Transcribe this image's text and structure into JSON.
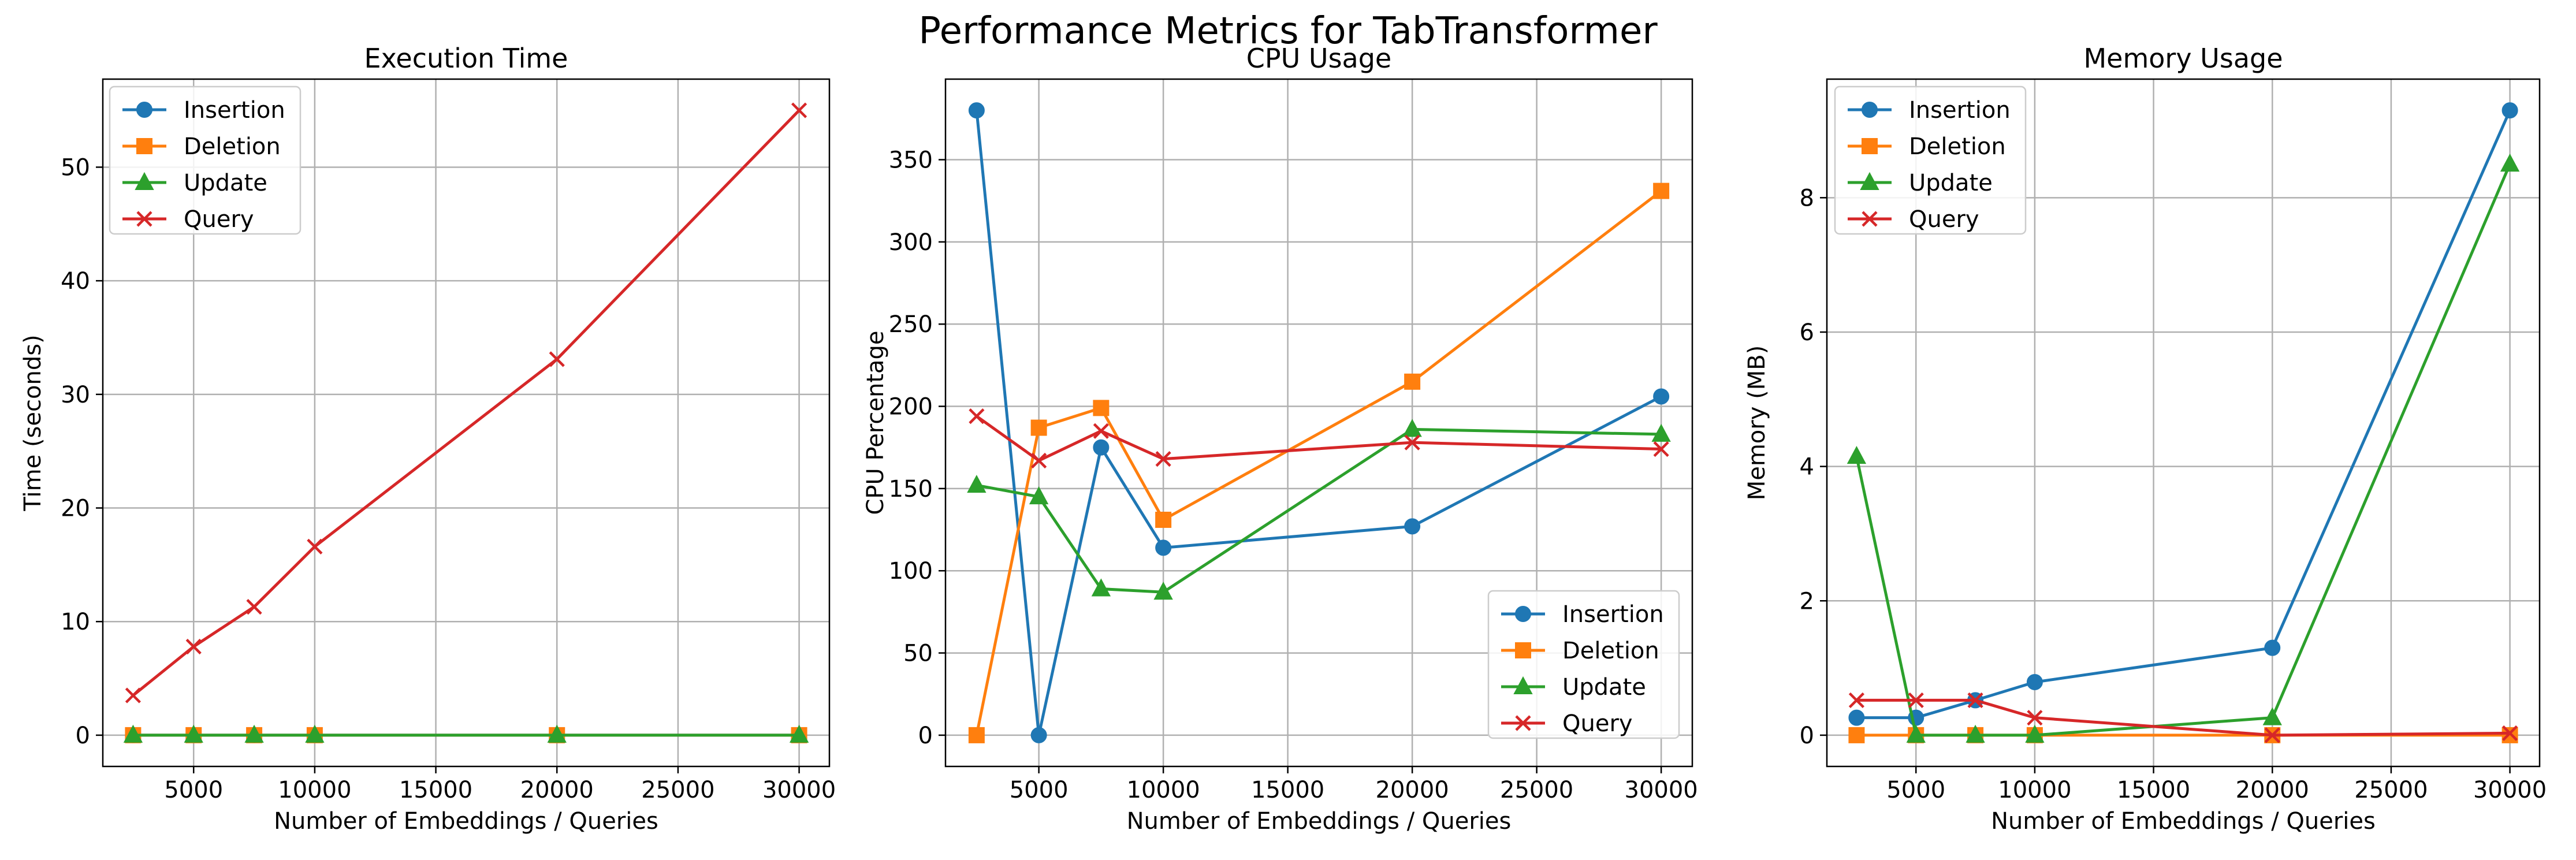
{
  "figure": {
    "title": "Performance Metrics for TabTransformer"
  },
  "series_styles": [
    {
      "name": "Insertion",
      "color": "#1f77b4",
      "marker": "circle"
    },
    {
      "name": "Deletion",
      "color": "#ff7f0e",
      "marker": "square"
    },
    {
      "name": "Update",
      "color": "#2ca02c",
      "marker": "triangle"
    },
    {
      "name": "Query",
      "color": "#d62728",
      "marker": "x"
    }
  ],
  "chart_data": [
    {
      "type": "line",
      "title": "Execution Time",
      "xlabel": "Number of Embeddings / Queries",
      "ylabel": "Time (seconds)",
      "x": [
        2500,
        5000,
        7500,
        10000,
        20000,
        30000
      ],
      "xlim": [
        1250,
        31250
      ],
      "ylim": [
        -2.75,
        57.75
      ],
      "xticks": [
        5000,
        10000,
        15000,
        20000,
        25000,
        30000
      ],
      "yticks": [
        0,
        10,
        20,
        30,
        40,
        50
      ],
      "grid": true,
      "legend": "upper-left",
      "series": [
        {
          "name": "Insertion",
          "values": [
            0,
            0,
            0,
            0,
            0,
            0
          ]
        },
        {
          "name": "Deletion",
          "values": [
            0,
            0,
            0,
            0,
            0,
            0
          ]
        },
        {
          "name": "Update",
          "values": [
            0,
            0,
            0,
            0,
            0,
            0
          ]
        },
        {
          "name": "Query",
          "values": [
            3.5,
            7.8,
            11.3,
            16.6,
            33.1,
            55.0
          ]
        }
      ]
    },
    {
      "type": "line",
      "title": "CPU Usage",
      "xlabel": "Number of Embeddings / Queries",
      "ylabel": "CPU Percentage",
      "x": [
        2500,
        5000,
        7500,
        10000,
        20000,
        30000
      ],
      "xlim": [
        1250,
        31250
      ],
      "ylim": [
        -19,
        399
      ],
      "xticks": [
        5000,
        10000,
        15000,
        20000,
        25000,
        30000
      ],
      "yticks": [
        0,
        50,
        100,
        150,
        200,
        250,
        300,
        350
      ],
      "grid": true,
      "legend": "lower-right",
      "series": [
        {
          "name": "Insertion",
          "values": [
            380,
            0,
            175,
            114,
            127,
            206
          ]
        },
        {
          "name": "Deletion",
          "values": [
            0,
            187,
            199,
            131,
            215,
            331
          ]
        },
        {
          "name": "Update",
          "values": [
            152,
            145,
            89,
            87,
            186,
            183
          ]
        },
        {
          "name": "Query",
          "values": [
            194,
            167,
            185,
            168,
            178,
            174
          ]
        }
      ]
    },
    {
      "type": "line",
      "title": "Memory Usage",
      "xlabel": "Number of Embeddings / Queries",
      "ylabel": "Memory (MB)",
      "x": [
        2500,
        5000,
        7500,
        10000,
        20000,
        30000
      ],
      "xlim": [
        1250,
        31250
      ],
      "ylim": [
        -0.465,
        9.765
      ],
      "xticks": [
        5000,
        10000,
        15000,
        20000,
        25000,
        30000
      ],
      "yticks": [
        0,
        2,
        4,
        6,
        8
      ],
      "grid": true,
      "legend": "upper-left",
      "series": [
        {
          "name": "Insertion",
          "values": [
            0.26,
            0.26,
            0.52,
            0.79,
            1.3,
            9.3
          ]
        },
        {
          "name": "Deletion",
          "values": [
            0,
            0,
            0,
            0,
            0,
            0
          ]
        },
        {
          "name": "Update",
          "values": [
            4.15,
            0,
            0,
            0,
            0.26,
            8.5
          ]
        },
        {
          "name": "Query",
          "values": [
            0.52,
            0.52,
            0.52,
            0.26,
            0,
            0.03
          ]
        }
      ]
    }
  ]
}
